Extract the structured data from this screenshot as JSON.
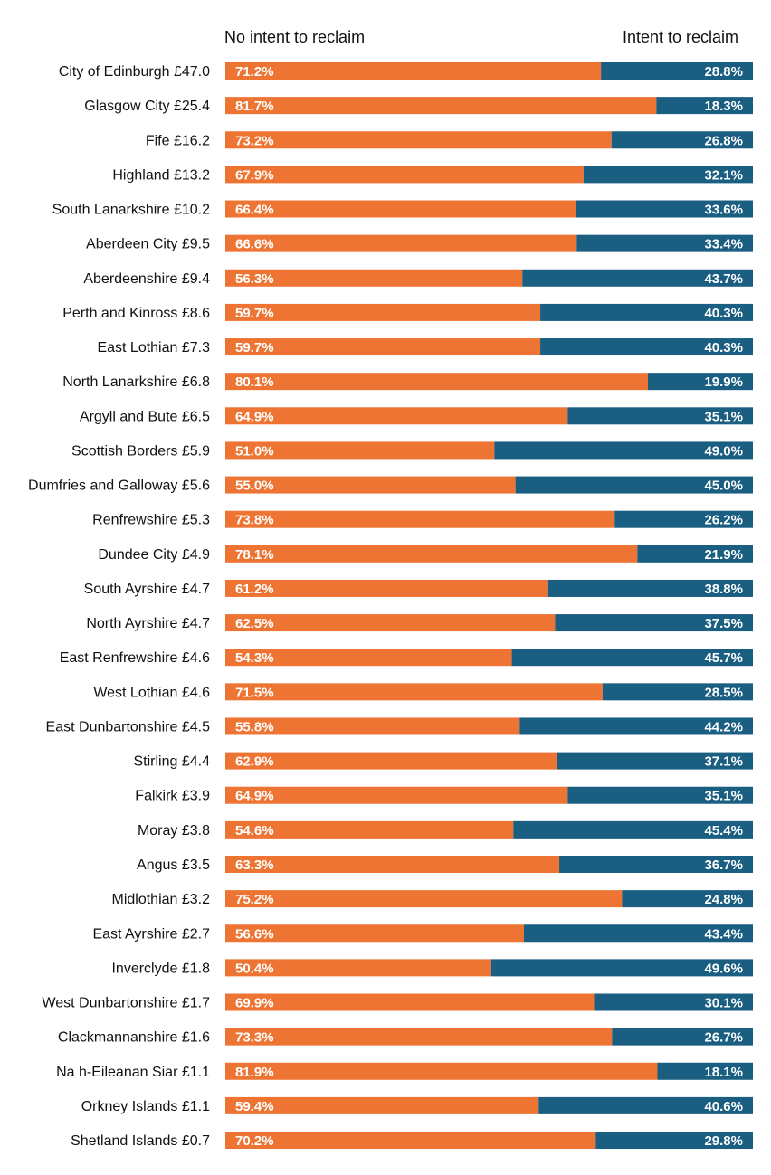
{
  "colors": {
    "no_intent": "#ED7433",
    "intent": "#1A5E82"
  },
  "chart_data": {
    "type": "bar",
    "orientation": "horizontal",
    "stacked": true,
    "percent_stacked": true,
    "legend": {
      "no_intent": "No intent to reclaim",
      "intent": "Intent to reclaim"
    },
    "categories": [
      "City of Edinburgh £47.0",
      "Glasgow City £25.4",
      "Fife £16.2",
      "Highland £13.2",
      "South Lanarkshire £10.2",
      "Aberdeen City £9.5",
      "Aberdeenshire £9.4",
      "Perth and Kinross £8.6",
      "East Lothian £7.3",
      "North Lanarkshire £6.8",
      "Argyll and Bute £6.5",
      "Scottish Borders £5.9",
      "Dumfries and Galloway £5.6",
      "Renfrewshire £5.3",
      "Dundee City £4.9",
      "South Ayrshire £4.7",
      "North Ayrshire £4.7",
      "East Renfrewshire £4.6",
      "West Lothian £4.6",
      "East Dunbartonshire £4.5",
      "Stirling £4.4",
      "Falkirk £3.9",
      "Moray £3.8",
      "Angus £3.5",
      "Midlothian £3.2",
      "East Ayrshire £2.7",
      "Inverclyde £1.8",
      "West Dunbartonshire £1.7",
      "Clackmannanshire £1.6",
      "Na h-Eileanan Siar £1.1",
      "Orkney Islands £1.1",
      "Shetland Islands £0.7"
    ],
    "series": [
      {
        "name": "No intent to reclaim",
        "values": [
          71.2,
          81.7,
          73.2,
          67.9,
          66.4,
          66.6,
          56.3,
          59.7,
          59.7,
          80.1,
          64.9,
          51.0,
          55.0,
          73.8,
          78.1,
          61.2,
          62.5,
          54.3,
          71.5,
          55.8,
          62.9,
          64.9,
          54.6,
          63.3,
          75.2,
          56.6,
          50.4,
          69.9,
          73.3,
          81.9,
          59.4,
          70.2
        ],
        "labels": [
          "71.2%",
          "81.7%",
          "73.2%",
          "67.9%",
          "66.4%",
          "66.6%",
          "56.3%",
          "59.7%",
          "59.7%",
          "80.1%",
          "64.9%",
          "51.0%",
          "55.0%",
          "73.8%",
          "78.1%",
          "61.2%",
          "62.5%",
          "54.3%",
          "71.5%",
          "55.8%",
          "62.9%",
          "64.9%",
          "54.6%",
          "63.3%",
          "75.2%",
          "56.6%",
          "50.4%",
          "69.9%",
          "73.3%",
          "81.9%",
          "59.4%",
          "70.2%"
        ]
      },
      {
        "name": "Intent to reclaim",
        "values": [
          28.8,
          18.3,
          26.8,
          32.1,
          33.6,
          33.4,
          43.7,
          40.3,
          40.3,
          19.9,
          35.1,
          49.0,
          45.0,
          26.2,
          21.9,
          38.8,
          37.5,
          45.7,
          28.5,
          44.2,
          37.1,
          35.1,
          45.4,
          36.7,
          24.8,
          43.4,
          49.6,
          30.1,
          26.7,
          18.1,
          40.6,
          29.8
        ],
        "labels": [
          "28.8%",
          "18.3%",
          "26.8%",
          "32.1%",
          "33.6%",
          "33.4%",
          "43.7%",
          "40.3%",
          "40.3%",
          "19.9%",
          "35.1%",
          "49.0%",
          "45.0%",
          "26.2%",
          "21.9%",
          "38.8%",
          "37.5%",
          "45.7%",
          "28.5%",
          "44.2%",
          "37.1%",
          "35.1%",
          "45.4%",
          "36.7%",
          "24.8%",
          "43.4%",
          "49.6%",
          "30.1%",
          "26.7%",
          "18.1%",
          "40.6%",
          "29.8%"
        ]
      }
    ],
    "xlim": [
      0,
      100
    ]
  }
}
